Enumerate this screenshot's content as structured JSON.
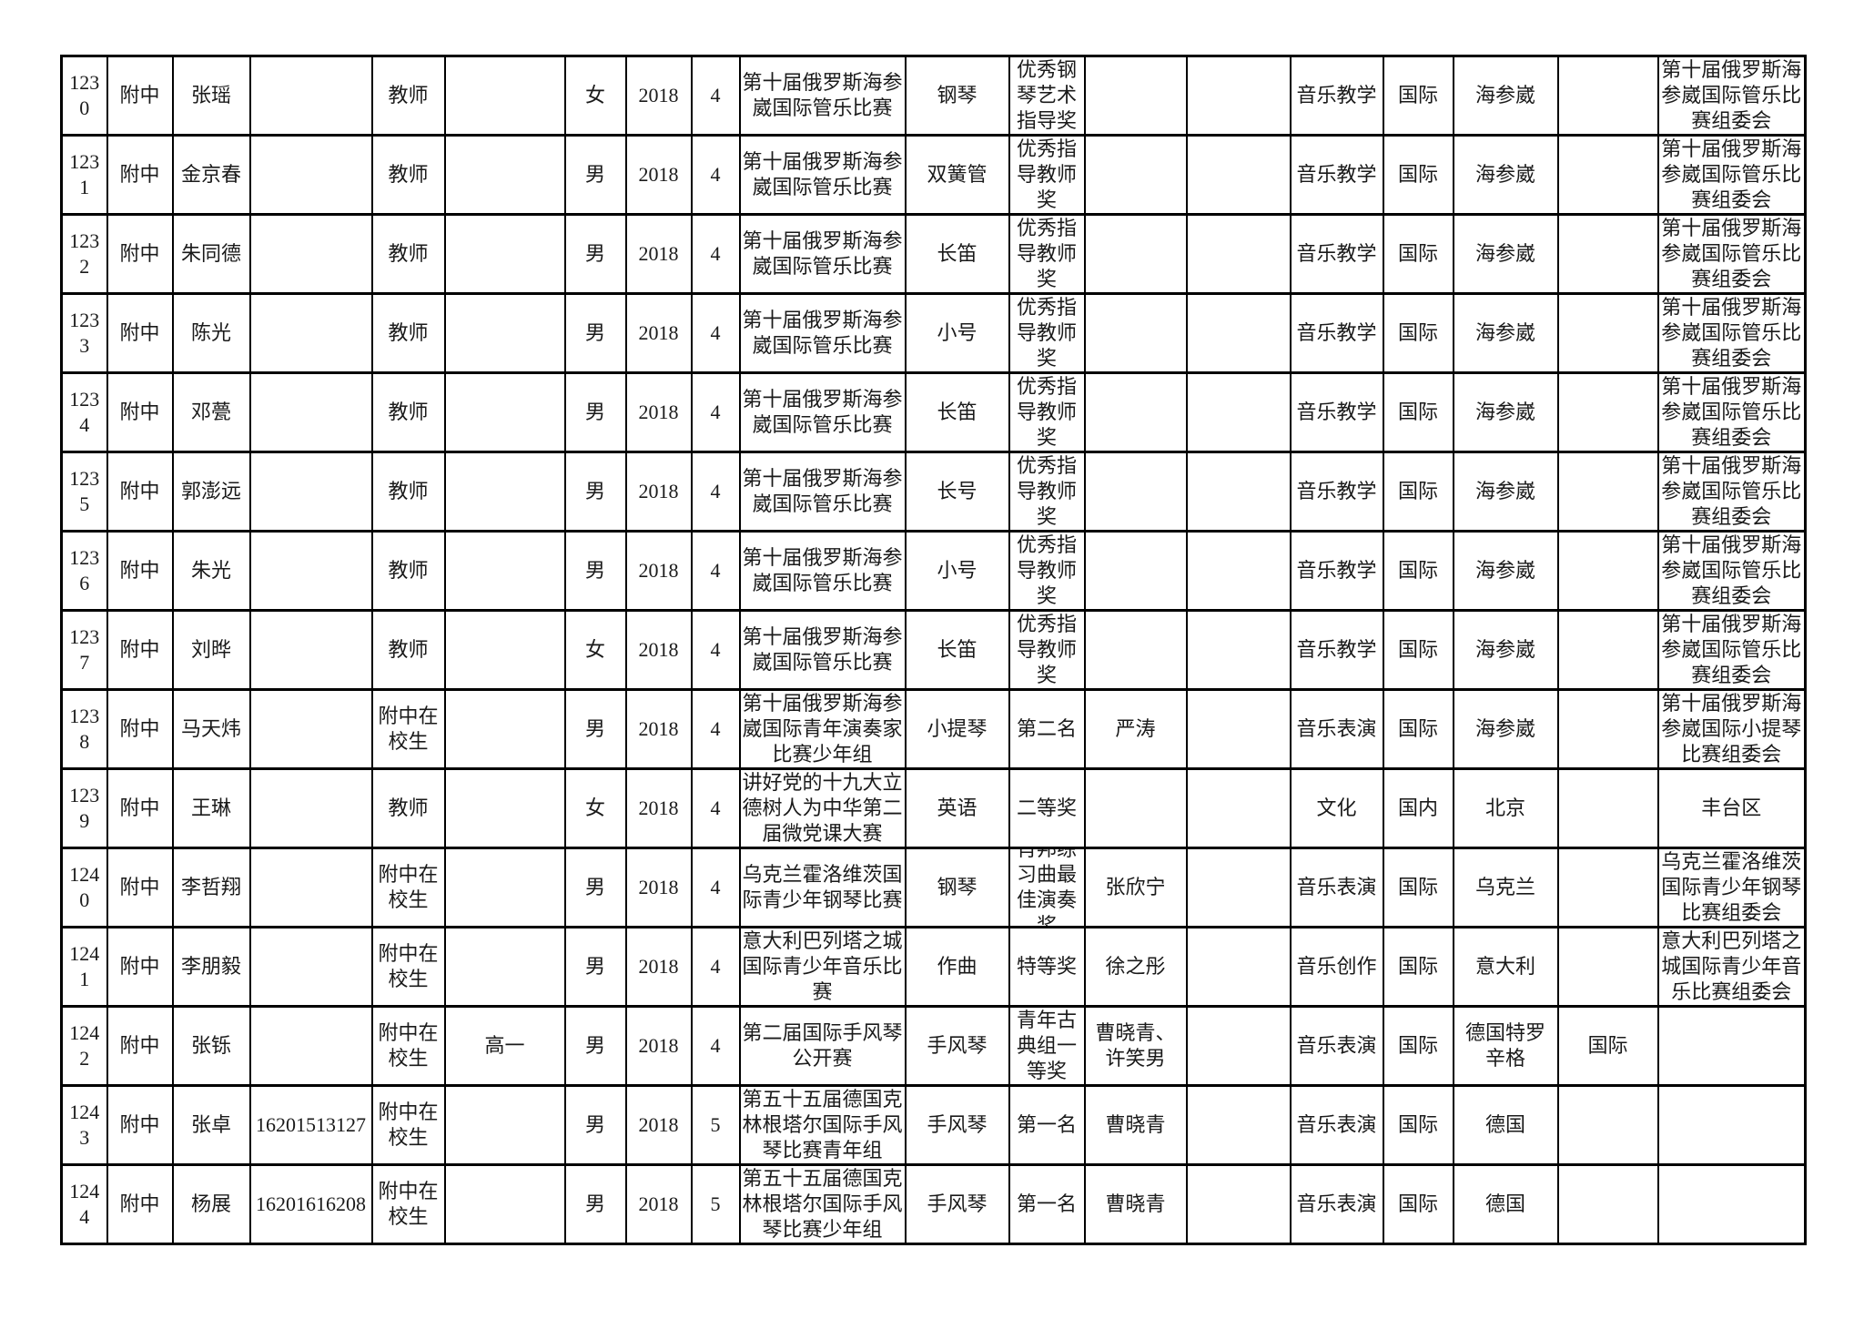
{
  "page": {
    "background_color": "#ffffff",
    "text_color": "#1a1a1a",
    "border_color": "#000000"
  },
  "table": {
    "rows": [
      [
        "1230",
        "附中",
        "张瑶",
        "",
        "教师",
        "",
        "女",
        "2018",
        "4",
        "第十届俄罗斯海参崴国际管乐比赛",
        "钢琴",
        "优秀钢琴艺术指导奖",
        "",
        "",
        "音乐教学",
        "国际",
        "海参崴",
        "",
        "第十届俄罗斯海参崴国际管乐比赛组委会"
      ],
      [
        "1231",
        "附中",
        "金京春",
        "",
        "教师",
        "",
        "男",
        "2018",
        "4",
        "第十届俄罗斯海参崴国际管乐比赛",
        "双簧管",
        "优秀指导教师奖",
        "",
        "",
        "音乐教学",
        "国际",
        "海参崴",
        "",
        "第十届俄罗斯海参崴国际管乐比赛组委会"
      ],
      [
        "1232",
        "附中",
        "朱同德",
        "",
        "教师",
        "",
        "男",
        "2018",
        "4",
        "第十届俄罗斯海参崴国际管乐比赛",
        "长笛",
        "优秀指导教师奖",
        "",
        "",
        "音乐教学",
        "国际",
        "海参崴",
        "",
        "第十届俄罗斯海参崴国际管乐比赛组委会"
      ],
      [
        "1233",
        "附中",
        "陈光",
        "",
        "教师",
        "",
        "男",
        "2018",
        "4",
        "第十届俄罗斯海参崴国际管乐比赛",
        "小号",
        "优秀指导教师奖",
        "",
        "",
        "音乐教学",
        "国际",
        "海参崴",
        "",
        "第十届俄罗斯海参崴国际管乐比赛组委会"
      ],
      [
        "1234",
        "附中",
        "邓甍",
        "",
        "教师",
        "",
        "男",
        "2018",
        "4",
        "第十届俄罗斯海参崴国际管乐比赛",
        "长笛",
        "优秀指导教师奖",
        "",
        "",
        "音乐教学",
        "国际",
        "海参崴",
        "",
        "第十届俄罗斯海参崴国际管乐比赛组委会"
      ],
      [
        "1235",
        "附中",
        "郭澎远",
        "",
        "教师",
        "",
        "男",
        "2018",
        "4",
        "第十届俄罗斯海参崴国际管乐比赛",
        "长号",
        "优秀指导教师奖",
        "",
        "",
        "音乐教学",
        "国际",
        "海参崴",
        "",
        "第十届俄罗斯海参崴国际管乐比赛组委会"
      ],
      [
        "1236",
        "附中",
        "朱光",
        "",
        "教师",
        "",
        "男",
        "2018",
        "4",
        "第十届俄罗斯海参崴国际管乐比赛",
        "小号",
        "优秀指导教师奖",
        "",
        "",
        "音乐教学",
        "国际",
        "海参崴",
        "",
        "第十届俄罗斯海参崴国际管乐比赛组委会"
      ],
      [
        "1237",
        "附中",
        "刘晔",
        "",
        "教师",
        "",
        "女",
        "2018",
        "4",
        "第十届俄罗斯海参崴国际管乐比赛",
        "长笛",
        "优秀指导教师奖",
        "",
        "",
        "音乐教学",
        "国际",
        "海参崴",
        "",
        "第十届俄罗斯海参崴国际管乐比赛组委会"
      ],
      [
        "1238",
        "附中",
        "马天炜",
        "",
        "附中在校生",
        "",
        "男",
        "2018",
        "4",
        "第十届俄罗斯海参崴国际青年演奏家比赛少年组",
        "小提琴",
        "第二名",
        "严涛",
        "",
        "音乐表演",
        "国际",
        "海参崴",
        "",
        "第十届俄罗斯海参崴国际小提琴比赛组委会"
      ],
      [
        "1239",
        "附中",
        "王琳",
        "",
        "教师",
        "",
        "女",
        "2018",
        "4",
        "讲好党的十九大立德树人为中华第二届微党课大赛",
        "英语",
        "二等奖",
        "",
        "",
        "文化",
        "国内",
        "北京",
        "",
        "丰台区"
      ],
      [
        "1240",
        "附中",
        "李哲翔",
        "",
        "附中在校生",
        "",
        "男",
        "2018",
        "4",
        "乌克兰霍洛维茨国际青少年钢琴比赛",
        "钢琴",
        "肖邦练习曲最佳演奏奖",
        "张欣宁",
        "",
        "音乐表演",
        "国际",
        "乌克兰",
        "",
        "乌克兰霍洛维茨国际青少年钢琴比赛组委会"
      ],
      [
        "1241",
        "附中",
        "李朋毅",
        "",
        "附中在校生",
        "",
        "男",
        "2018",
        "4",
        "意大利巴列塔之城国际青少年音乐比赛",
        "作曲",
        "特等奖",
        "徐之彤",
        "",
        "音乐创作",
        "国际",
        "意大利",
        "",
        "意大利巴列塔之城国际青少年音乐比赛组委会"
      ],
      [
        "1242",
        "附中",
        "张铄",
        "",
        "附中在校生",
        "高一",
        "男",
        "2018",
        "4",
        "第二届国际手风琴公开赛",
        "手风琴",
        "青年古典组一等奖",
        "曹晓青、许笑男",
        "",
        "音乐表演",
        "国际",
        "德国特罗辛格",
        "国际",
        ""
      ],
      [
        "1243",
        "附中",
        "张卓",
        "16201513127",
        "附中在校生",
        "",
        "男",
        "2018",
        "5",
        "第五十五届德国克林根塔尔国际手风琴比赛青年组",
        "手风琴",
        "第一名",
        "曹晓青",
        "",
        "音乐表演",
        "国际",
        "德国",
        "",
        ""
      ],
      [
        "1244",
        "附中",
        "杨展",
        "16201616208",
        "附中在校生",
        "",
        "男",
        "2018",
        "5",
        "第五十五届德国克林根塔尔国际手风琴比赛少年组",
        "手风琴",
        "第一名",
        "曹晓青",
        "",
        "音乐表演",
        "国际",
        "德国",
        "",
        ""
      ]
    ]
  }
}
